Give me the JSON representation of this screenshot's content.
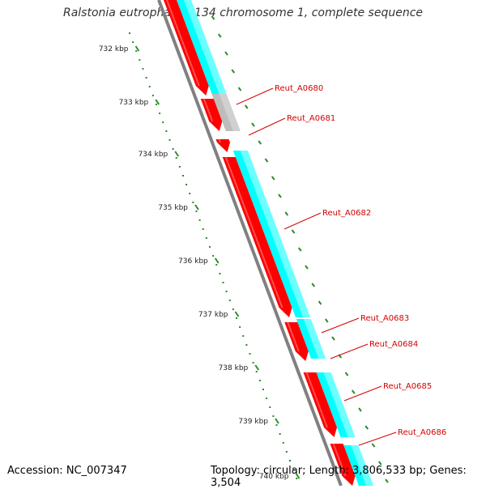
{
  "title": "Ralstonia eutropha JMP134 chromosome 1, complete sequence",
  "footer": {
    "accession": "Accession: NC_007347",
    "summary": "Topology: circular; Length: 3,806,533 bp; Genes: 3,504"
  },
  "ruler": {
    "ticks": [
      "732 kbp",
      "733 kbp",
      "734 kbp",
      "735 kbp",
      "736 kbp",
      "737 kbp",
      "738 kbp",
      "739 kbp",
      "740 kbp"
    ]
  },
  "genes": [
    {
      "id": "Reut_A0680"
    },
    {
      "id": "Reut_A0681"
    },
    {
      "id": "Reut_A0682"
    },
    {
      "id": "Reut_A0683"
    },
    {
      "id": "Reut_A0684"
    },
    {
      "id": "Reut_A0685"
    },
    {
      "id": "Reut_A0686"
    }
  ],
  "colors": {
    "cds": "#ff0000",
    "cds_highlight": "#ff7070",
    "feature": "#00ffff",
    "feature_highlight": "#b3ffff",
    "feature_gray": "#bdbdbd",
    "backbone": "#808080",
    "ruler_dots": "#2e8b2e",
    "label": "#d40000",
    "leader": "#d40000"
  }
}
